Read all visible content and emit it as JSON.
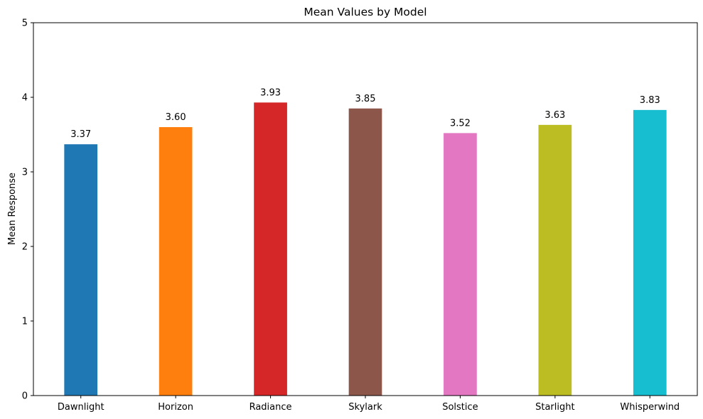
{
  "chart_data": {
    "type": "bar",
    "title": "Mean Values by Model",
    "xlabel": "",
    "ylabel": "Mean Response",
    "categories": [
      "Dawnlight",
      "Horizon",
      "Radiance",
      "Skylark",
      "Solstice",
      "Starlight",
      "Whisperwind"
    ],
    "values": [
      3.37,
      3.6,
      3.93,
      3.85,
      3.52,
      3.63,
      3.83
    ],
    "value_labels": [
      "3.37",
      "3.60",
      "3.93",
      "3.85",
      "3.52",
      "3.63",
      "3.83"
    ],
    "colors": [
      "#1f77b4",
      "#ff7f0e",
      "#d62728",
      "#8c564b",
      "#e377c2",
      "#bcbd22",
      "#17becf"
    ],
    "ylim": [
      0,
      5
    ],
    "yticks": [
      0,
      1,
      2,
      3,
      4,
      5
    ],
    "ytick_labels": [
      "0",
      "1",
      "2",
      "3",
      "4",
      "5"
    ],
    "grid": false,
    "legend": "none"
  }
}
